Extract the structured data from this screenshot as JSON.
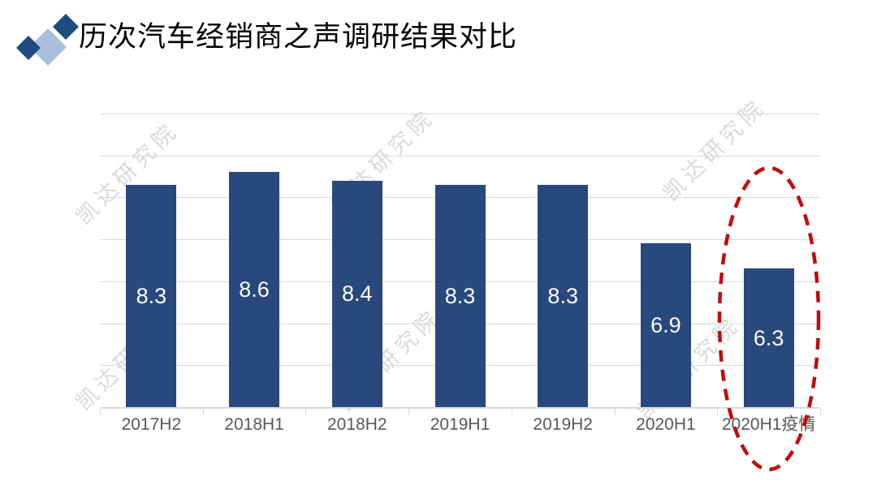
{
  "header": {
    "title": "历次汽车经销商之声调研结果对比",
    "icon": {
      "name": "diamond-cluster",
      "dark_color": "#1F4B7E",
      "light_color": "#A9BFDB"
    }
  },
  "watermark": {
    "text": "凯达研究院",
    "color": "#D9D9D9"
  },
  "chart_data": {
    "type": "bar",
    "title": "历次汽车经销商之声调研结果对比",
    "xlabel": "",
    "ylabel": "",
    "categories": [
      "2017H2",
      "2018H1",
      "2018H2",
      "2019H1",
      "2019H2",
      "2020H1",
      "2020H1疫情"
    ],
    "values": [
      8.3,
      8.6,
      8.4,
      8.3,
      8.3,
      6.9,
      6.3
    ],
    "data_labels": [
      "8.3",
      "8.6",
      "8.4",
      "8.3",
      "8.3",
      "6.9",
      "6.3"
    ],
    "ylim": [
      3,
      10
    ],
    "gridline_step": 1,
    "grid": true,
    "legend": "none",
    "bar_color": "#28487E",
    "data_label_color": "#FFFFFF",
    "axis_color": "#D9D9D9",
    "category_label_color": "#595959",
    "annotation": {
      "shape": "dashed-ellipse",
      "around_category": "2020H1疫情",
      "color": "#C00C0C"
    }
  }
}
